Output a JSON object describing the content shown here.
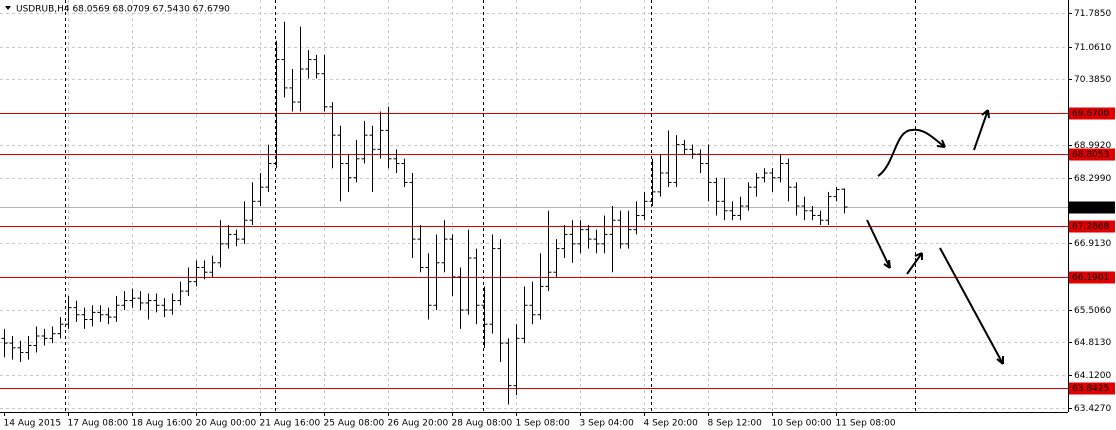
{
  "chart_data": {
    "type": "ohlc",
    "title": "USDRUB,H4  68.0569 68.0709 67.5430 67.6790",
    "categories": [
      "14 Aug 2015",
      null,
      null,
      null,
      null,
      null,
      null,
      null,
      "17 Aug 08:00",
      null,
      null,
      null,
      null,
      null,
      null,
      null,
      "18 Aug 16:00",
      null,
      null,
      null,
      null,
      null,
      null,
      null,
      "20 Aug 00:00",
      null,
      null,
      null,
      null,
      null,
      null,
      null,
      "21 Aug 16:00",
      null,
      null,
      null,
      null,
      null,
      null,
      null,
      "25 Aug 08:00",
      null,
      null,
      null,
      null,
      null,
      null,
      null,
      "26 Aug 20:00",
      null,
      null,
      null,
      null,
      null,
      null,
      null,
      "28 Aug 08:00",
      null,
      null,
      null,
      null,
      null,
      null,
      null,
      "1 Sep 08:00",
      null,
      null,
      null,
      null,
      null,
      null,
      null,
      "3 Sep 04:00",
      null,
      null,
      null,
      null,
      null,
      null,
      null,
      "4 Sep 20:00",
      null,
      null,
      null,
      null,
      null,
      null,
      null,
      "8 Sep 12:00",
      null,
      null,
      null,
      null,
      null,
      null,
      null,
      "10 Sep 00:00",
      null,
      null,
      null,
      null,
      null,
      null,
      null,
      "11 Sep 08:00",
      null
    ],
    "open": [
      64.9,
      64.8,
      64.7,
      64.6,
      64.75,
      64.95,
      64.9,
      65.0,
      65.2,
      65.55,
      65.4,
      65.3,
      65.45,
      65.4,
      65.35,
      65.6,
      65.7,
      65.75,
      65.65,
      65.7,
      65.6,
      65.5,
      65.7,
      65.9,
      66.1,
      66.4,
      66.3,
      66.5,
      66.9,
      67.1,
      67.0,
      67.4,
      67.8,
      68.1,
      68.6,
      70.8,
      70.2,
      69.9,
      70.6,
      70.8,
      70.5,
      69.8,
      69.2,
      68.6,
      68.3,
      68.7,
      69.2,
      68.9,
      69.3,
      68.7,
      68.6,
      68.2,
      67.0,
      66.4,
      65.6,
      66.5,
      67.0,
      66.2,
      65.5,
      66.6,
      65.6,
      65.2,
      66.8,
      64.8,
      63.9,
      64.9,
      65.6,
      65.4,
      66.0,
      66.3,
      66.8,
      67.1,
      66.9,
      67.2,
      67.0,
      66.9,
      67.1,
      67.4,
      66.9,
      67.2,
      67.5,
      67.8,
      68.0,
      68.4,
      68.2,
      69.0,
      68.9,
      68.8,
      68.6,
      68.2,
      67.8,
      67.6,
      67.5,
      67.7,
      68.1,
      68.3,
      68.4,
      68.3,
      68.6,
      68.1,
      67.7,
      67.6,
      67.5,
      67.4,
      67.9,
      68.0569
    ],
    "high": [
      65.1,
      64.95,
      64.85,
      64.95,
      65.15,
      65.1,
      65.15,
      65.35,
      65.8,
      65.7,
      65.55,
      65.6,
      65.6,
      65.55,
      65.8,
      65.9,
      65.95,
      65.9,
      65.85,
      65.85,
      65.75,
      65.85,
      66.1,
      66.4,
      66.55,
      66.55,
      66.65,
      67.4,
      67.3,
      67.2,
      67.8,
      68.2,
      68.4,
      69.0,
      71.2,
      71.6,
      70.6,
      71.5,
      71.0,
      70.9,
      70.9,
      69.9,
      69.4,
      68.8,
      69.1,
      69.5,
      69.4,
      69.7,
      69.8,
      68.9,
      68.7,
      68.4,
      67.3,
      66.7,
      67.1,
      67.4,
      67.1,
      66.4,
      67.2,
      66.8,
      66.0,
      67.1,
      67.0,
      64.9,
      65.2,
      66.0,
      66.1,
      66.7,
      67.6,
      67.0,
      67.3,
      67.4,
      67.4,
      67.3,
      67.2,
      67.5,
      67.7,
      67.6,
      67.6,
      67.8,
      68.0,
      68.7,
      68.8,
      69.3,
      69.2,
      69.1,
      69.0,
      68.9,
      69.0,
      68.3,
      68.3,
      67.8,
      67.9,
      68.2,
      68.4,
      68.5,
      68.5,
      68.8,
      68.7,
      68.2,
      67.9,
      67.7,
      67.6,
      68.0,
      68.1,
      68.0709
    ],
    "low": [
      64.5,
      64.45,
      64.4,
      64.45,
      64.6,
      64.75,
      64.8,
      64.9,
      65.1,
      65.25,
      65.1,
      65.15,
      65.25,
      65.2,
      65.25,
      65.5,
      65.55,
      65.5,
      65.3,
      65.45,
      65.35,
      65.4,
      65.6,
      65.8,
      66.0,
      66.15,
      66.2,
      66.4,
      66.8,
      66.85,
      66.9,
      67.3,
      67.7,
      68.0,
      68.5,
      70.0,
      69.7,
      69.7,
      70.4,
      70.4,
      69.7,
      68.5,
      67.8,
      68.0,
      68.2,
      68.6,
      68.0,
      68.7,
      68.5,
      68.4,
      68.1,
      66.6,
      66.3,
      65.3,
      65.5,
      66.3,
      65.8,
      65.1,
      65.4,
      65.2,
      64.7,
      65.0,
      64.4,
      63.5,
      63.7,
      64.8,
      65.2,
      65.3,
      65.9,
      66.2,
      66.6,
      66.5,
      66.7,
      66.8,
      66.7,
      66.7,
      66.3,
      66.8,
      66.8,
      67.1,
      67.4,
      67.7,
      67.9,
      68.1,
      68.1,
      68.8,
      68.7,
      68.4,
      67.8,
      67.5,
      67.4,
      67.4,
      67.4,
      67.6,
      67.9,
      68.2,
      68.0,
      68.2,
      67.8,
      67.5,
      67.4,
      67.4,
      67.3,
      67.3,
      67.8,
      67.543
    ],
    "close": [
      64.8,
      64.7,
      64.6,
      64.75,
      64.95,
      64.9,
      65.0,
      65.2,
      65.55,
      65.4,
      65.3,
      65.45,
      65.4,
      65.35,
      65.6,
      65.7,
      65.75,
      65.65,
      65.7,
      65.6,
      65.5,
      65.7,
      65.9,
      66.1,
      66.4,
      66.3,
      66.5,
      66.9,
      67.1,
      67.0,
      67.4,
      67.8,
      68.1,
      68.6,
      70.8,
      70.2,
      69.9,
      70.6,
      70.8,
      70.5,
      69.8,
      69.2,
      68.6,
      68.3,
      68.7,
      69.2,
      68.9,
      69.3,
      68.7,
      68.6,
      68.2,
      67.0,
      66.4,
      65.6,
      66.5,
      67.0,
      66.2,
      65.5,
      66.6,
      65.6,
      65.2,
      66.8,
      64.8,
      63.9,
      64.9,
      65.6,
      65.4,
      66.0,
      66.3,
      66.8,
      67.1,
      66.9,
      67.2,
      67.0,
      66.9,
      67.1,
      67.4,
      66.9,
      67.2,
      67.5,
      67.8,
      68.0,
      68.4,
      68.2,
      69.0,
      68.9,
      68.8,
      68.6,
      68.2,
      67.8,
      67.6,
      67.5,
      67.7,
      68.1,
      68.3,
      68.4,
      68.3,
      68.6,
      68.1,
      67.7,
      67.6,
      67.5,
      67.4,
      67.9,
      68.05,
      67.679
    ],
    "color": "#000000",
    "ylim": [
      63.342,
      72.06
    ],
    "yticks": [
      {
        "value": 71.785,
        "label": "71.7850"
      },
      {
        "value": 71.061,
        "label": "71.0610"
      },
      {
        "value": 70.385,
        "label": "70.3850"
      },
      {
        "value": 68.992,
        "label": "68.9920"
      },
      {
        "value": 68.299,
        "label": "68.2990"
      },
      {
        "value": 66.913,
        "label": "66.9130"
      },
      {
        "value": 65.506,
        "label": "65.5060"
      },
      {
        "value": 64.813,
        "label": "64.8130"
      },
      {
        "value": 64.12,
        "label": "64.1200"
      },
      {
        "value": 63.427,
        "label": "63.4270"
      }
    ],
    "levels": [
      {
        "value": 69.67,
        "label": "69.6700"
      },
      68.8053,
      67.2868,
      66.1901,
      63.8425
    ],
    "level_color": "#e00000",
    "current_price": {
      "value": 67.679,
      "label": "67.6790"
    },
    "grid": true
  }
}
